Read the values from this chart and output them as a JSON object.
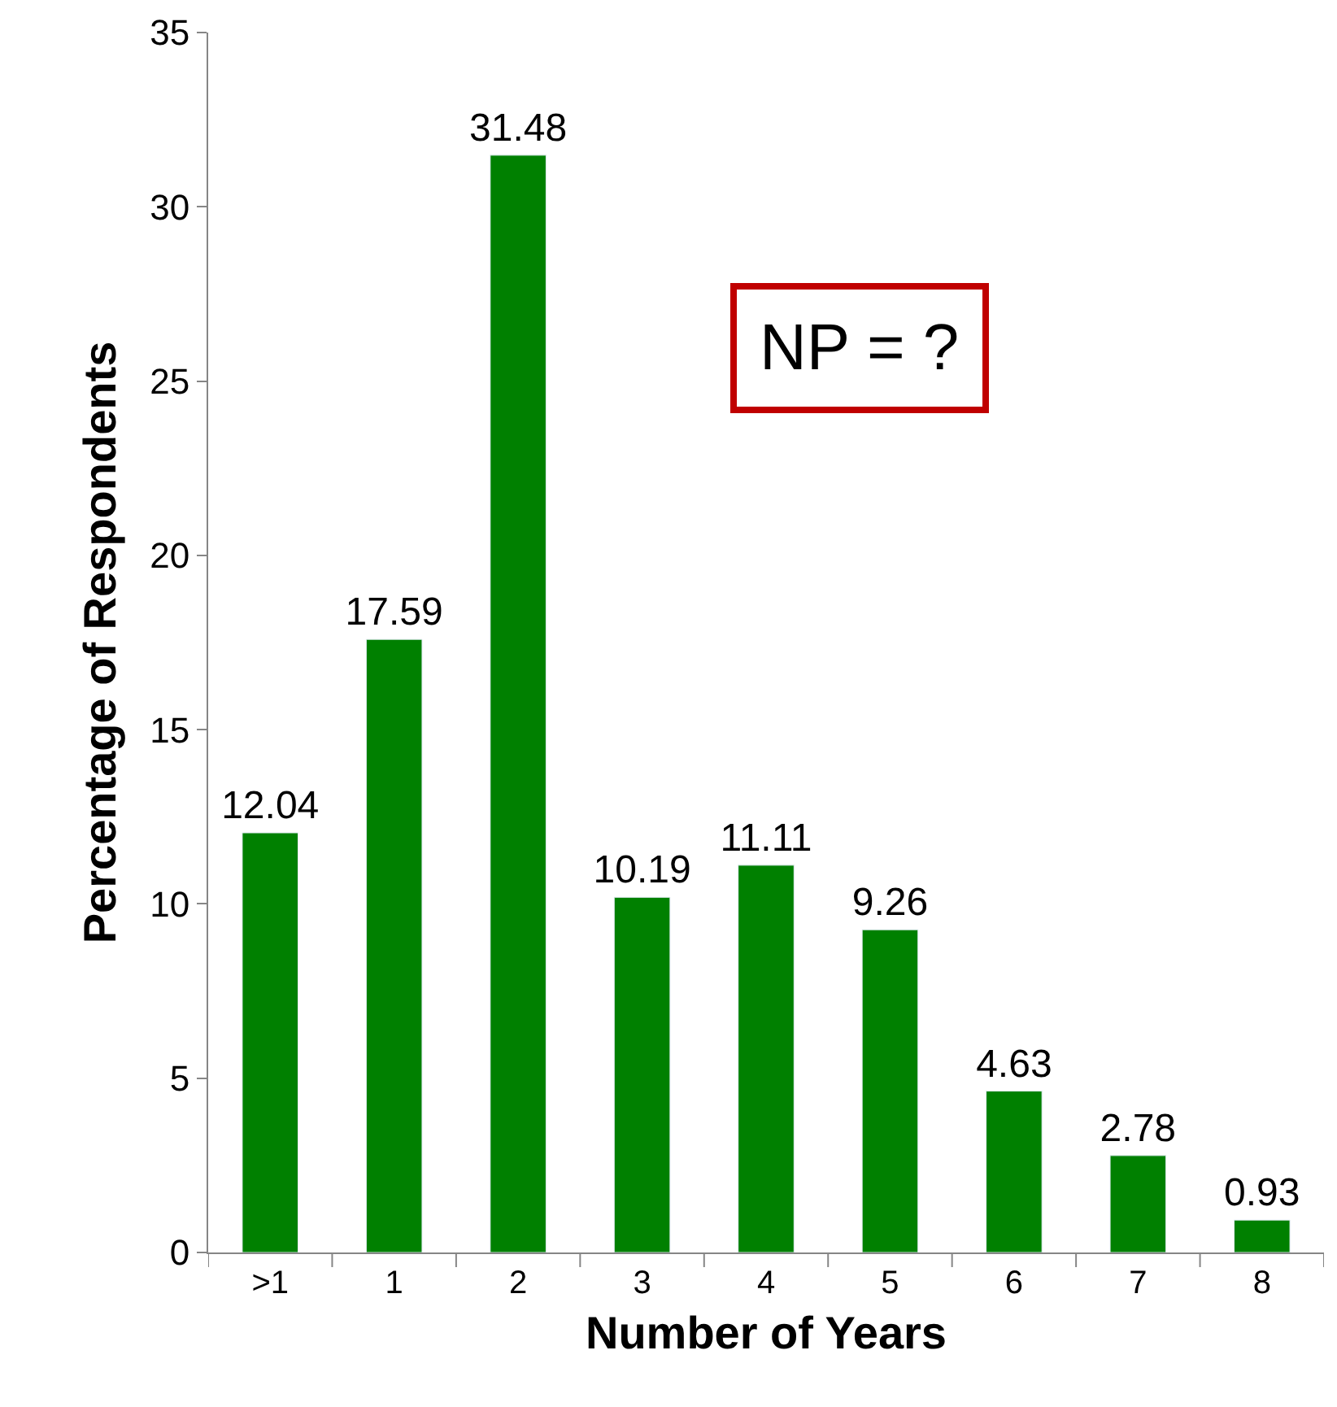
{
  "chart_data": {
    "type": "bar",
    "xlabel": "Number of Years",
    "ylabel": "Percentage of Respondents",
    "categories": [
      ">1",
      "1",
      "2",
      "3",
      "4",
      "5",
      "6",
      "7",
      "8"
    ],
    "values": [
      12.04,
      17.59,
      31.48,
      10.19,
      11.11,
      9.26,
      4.63,
      2.78,
      0.93
    ],
    "color": "#008000",
    "ylim": [
      0,
      35
    ],
    "yticks": [
      0,
      5,
      10,
      15,
      20,
      25,
      30,
      35
    ],
    "data_labels": true,
    "annotations": [
      "NP = ?"
    ]
  }
}
